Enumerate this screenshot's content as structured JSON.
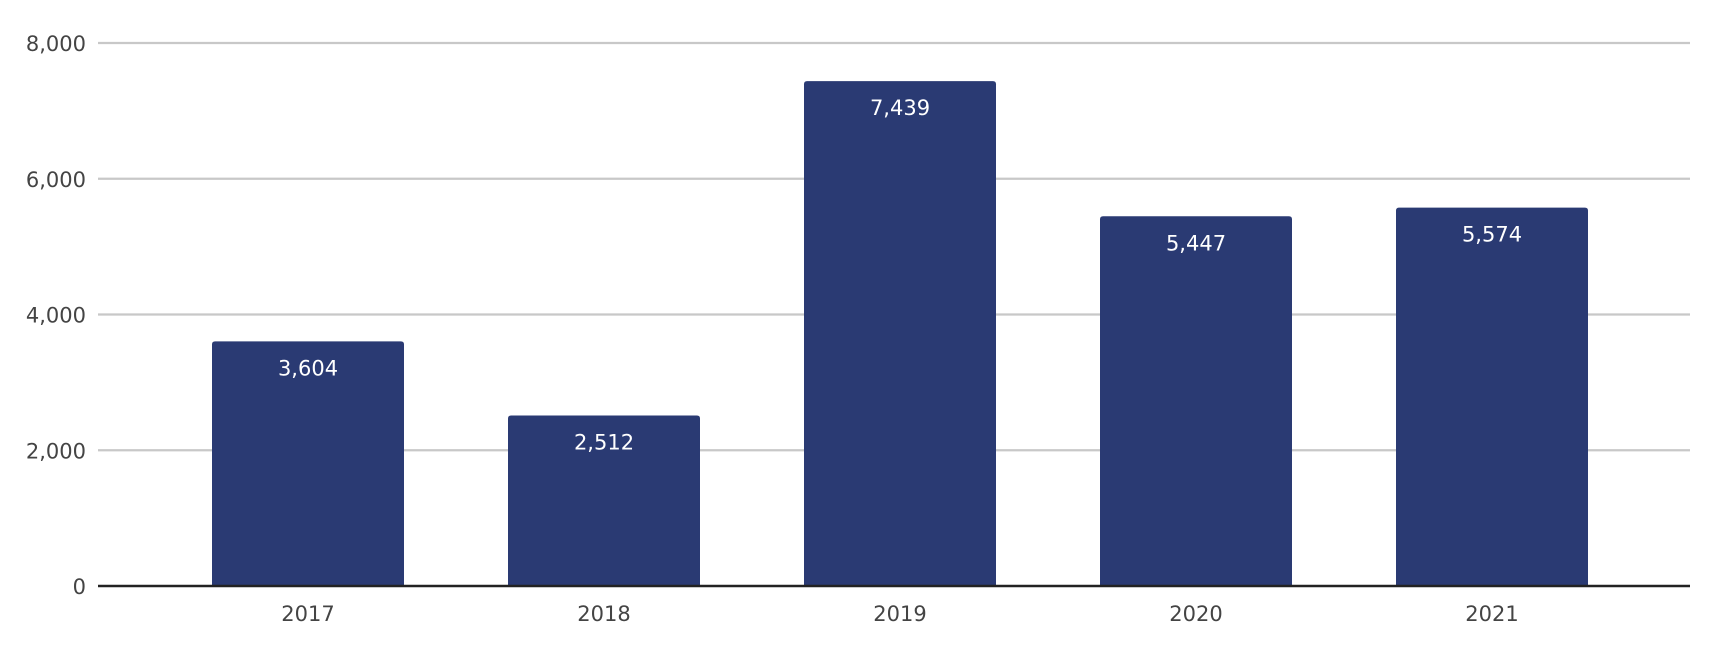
{
  "chart_data": {
    "type": "bar",
    "title": "",
    "xlabel": "",
    "ylabel": "",
    "categories": [
      "2017",
      "2018",
      "2019",
      "2020",
      "2021"
    ],
    "values": [
      3604,
      2512,
      7439,
      5447,
      5574
    ],
    "data_labels": [
      "3,604",
      "2,512",
      "7,439",
      "5,447",
      "5,574"
    ],
    "ylim": [
      0,
      8000
    ],
    "y_ticks": [
      0,
      2000,
      4000,
      6000,
      8000
    ],
    "y_tick_labels": [
      "0",
      "2,000",
      "4,000",
      "6,000",
      "8,000"
    ],
    "grid": true,
    "legend": "none",
    "bar_color": "#2a3a73",
    "grid_color": "#c8c8c8",
    "axis_color": "#222222"
  }
}
